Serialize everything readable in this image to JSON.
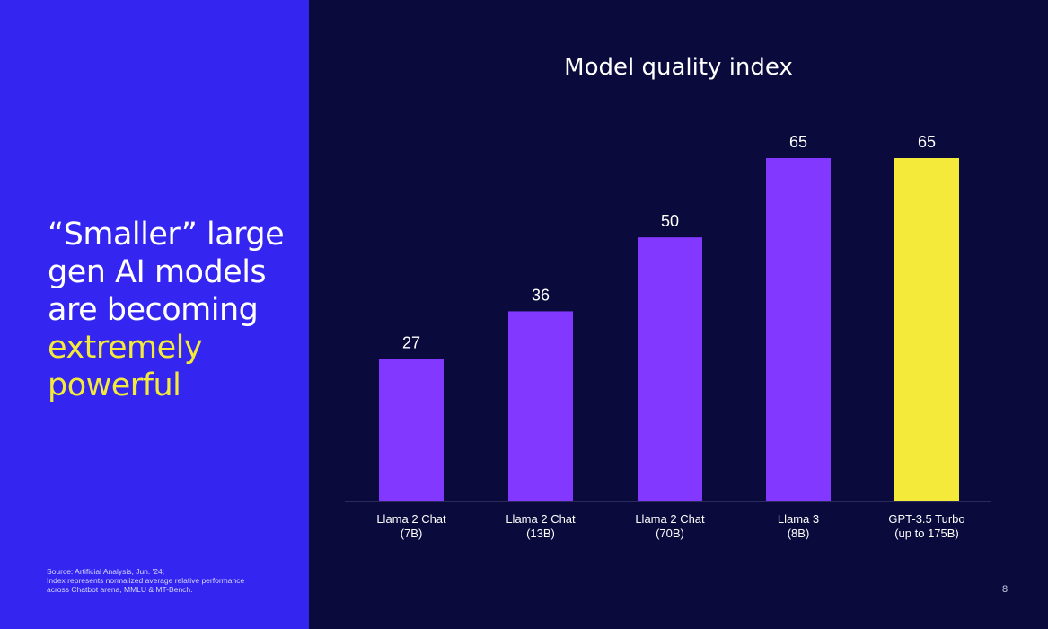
{
  "headline": {
    "line1": "“Smaller” large",
    "line2": "gen AI models",
    "line3": "are becoming",
    "highlight1": "extremely",
    "highlight2": "powerful"
  },
  "source_note": {
    "line1": "Source: Artificial Analysis, Jun. '24;",
    "line2": "Index represents normalized average relative performance",
    "line3": "across Chatbot arena, MMLU & MT-Bench."
  },
  "page_number": "8",
  "colors": {
    "left_panel": "#3426f0",
    "background": "#0a0b3c",
    "bar_default": "#8338ff",
    "bar_highlight": "#f4ea3a",
    "text": "#ffffff"
  },
  "chart_data": {
    "type": "bar",
    "title": "Model quality index",
    "categories": [
      [
        "Llama 2 Chat",
        "(7B)"
      ],
      [
        "Llama 2 Chat",
        "(13B)"
      ],
      [
        "Llama 2 Chat",
        "(70B)"
      ],
      [
        "Llama 3",
        "(8B)"
      ],
      [
        "GPT-3.5 Turbo",
        "(up to 175B)"
      ]
    ],
    "values": [
      27,
      36,
      50,
      65,
      65
    ],
    "highlight_index": 4,
    "ylim": [
      0,
      65
    ],
    "grid": false,
    "legend": "none"
  }
}
